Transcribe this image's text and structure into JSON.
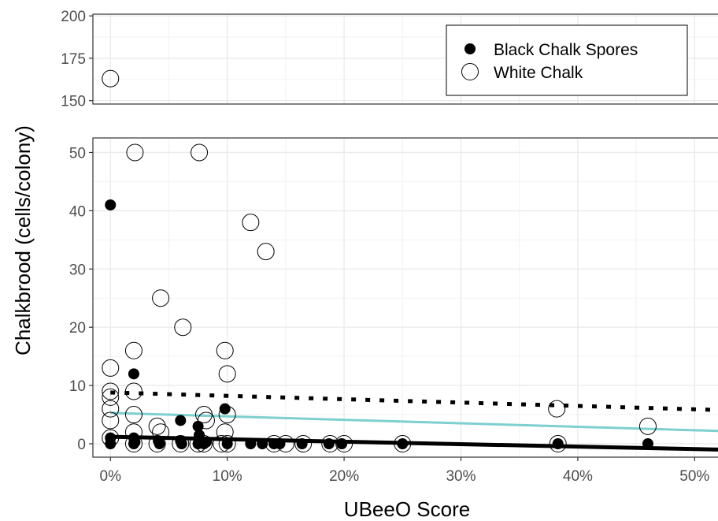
{
  "chart_data": {
    "type": "scatter",
    "xlabel": "UBeeO Score",
    "ylabel": "Chalkbrood (cells/colony)",
    "x_tick_labels": [
      "0%",
      "10%",
      "20%",
      "30%",
      "40%",
      "50%"
    ],
    "x_ticks": [
      0,
      10,
      20,
      30,
      40,
      50
    ],
    "xlim": [
      -1.5,
      52
    ],
    "panels": [
      {
        "name": "upper",
        "ylim": [
          148,
          201
        ],
        "y_ticks": [
          150,
          175,
          200
        ],
        "y_tick_labels": [
          "150",
          "175",
          "200"
        ]
      },
      {
        "name": "lower",
        "ylim": [
          -2.3,
          52.5
        ],
        "y_ticks": [
          0,
          10,
          20,
          30,
          40,
          50
        ],
        "y_tick_labels": [
          "0",
          "10",
          "20",
          "30",
          "40",
          "50"
        ]
      }
    ],
    "grid": true,
    "legend_position": "top-right",
    "series": [
      {
        "name": "Black Chalk Spores",
        "marker": "filled-circle",
        "color": "#000000",
        "points": [
          [
            0,
            41
          ],
          [
            2,
            12
          ],
          [
            6,
            4
          ],
          [
            7.5,
            3
          ],
          [
            9.8,
            6
          ],
          [
            7.6,
            1.5
          ],
          [
            0,
            1
          ],
          [
            0,
            0
          ],
          [
            2,
            1
          ],
          [
            2,
            0
          ],
          [
            2.1,
            0.3
          ],
          [
            4.1,
            0.5
          ],
          [
            4.2,
            0
          ],
          [
            6,
            0.5
          ],
          [
            6.1,
            0
          ],
          [
            7.5,
            0
          ],
          [
            8,
            0
          ],
          [
            8.2,
            0.3
          ],
          [
            10,
            0
          ],
          [
            12,
            0
          ],
          [
            13,
            0
          ],
          [
            14,
            0
          ],
          [
            14.5,
            0
          ],
          [
            16.4,
            0
          ],
          [
            18.7,
            0
          ],
          [
            19.8,
            0
          ],
          [
            25,
            0
          ],
          [
            38.3,
            0
          ],
          [
            46,
            0
          ]
        ]
      },
      {
        "name": "White Chalk",
        "marker": "open-circle",
        "color": "#000000",
        "points": [
          [
            0,
            163
          ],
          [
            2.1,
            50
          ],
          [
            7.6,
            50
          ],
          [
            12,
            38
          ],
          [
            13.3,
            33
          ],
          [
            4.3,
            25
          ],
          [
            6.2,
            20
          ],
          [
            2,
            16
          ],
          [
            9.8,
            16
          ],
          [
            0,
            13
          ],
          [
            10,
            12
          ],
          [
            0,
            9
          ],
          [
            0,
            8
          ],
          [
            2,
            9
          ],
          [
            0,
            6
          ],
          [
            0,
            4
          ],
          [
            2,
            5
          ],
          [
            4,
            3
          ],
          [
            4.3,
            2
          ],
          [
            8,
            5
          ],
          [
            8.2,
            4
          ],
          [
            10,
            5
          ],
          [
            9.8,
            2
          ],
          [
            0,
            1
          ],
          [
            2,
            2
          ],
          [
            2,
            0
          ],
          [
            4,
            0
          ],
          [
            6,
            0
          ],
          [
            7.5,
            0
          ],
          [
            8,
            0
          ],
          [
            9.5,
            0
          ],
          [
            10,
            0
          ],
          [
            14,
            0
          ],
          [
            15,
            0
          ],
          [
            16.5,
            0
          ],
          [
            18.8,
            0
          ],
          [
            20,
            0
          ],
          [
            25,
            0
          ],
          [
            38.2,
            6
          ],
          [
            38.3,
            0
          ],
          [
            46,
            3
          ]
        ]
      }
    ],
    "trend_lines": [
      {
        "style": "solid-thick",
        "color": "#000000",
        "from": [
          0,
          1.2
        ],
        "to": [
          52,
          -1.0
        ]
      },
      {
        "style": "solid",
        "color": "#7ecfcf",
        "from": [
          0,
          5.3
        ],
        "to": [
          52,
          2.2
        ]
      },
      {
        "style": "dotted",
        "color": "#000000",
        "from": [
          0,
          8.8
        ],
        "to": [
          52,
          5.8
        ]
      }
    ]
  }
}
